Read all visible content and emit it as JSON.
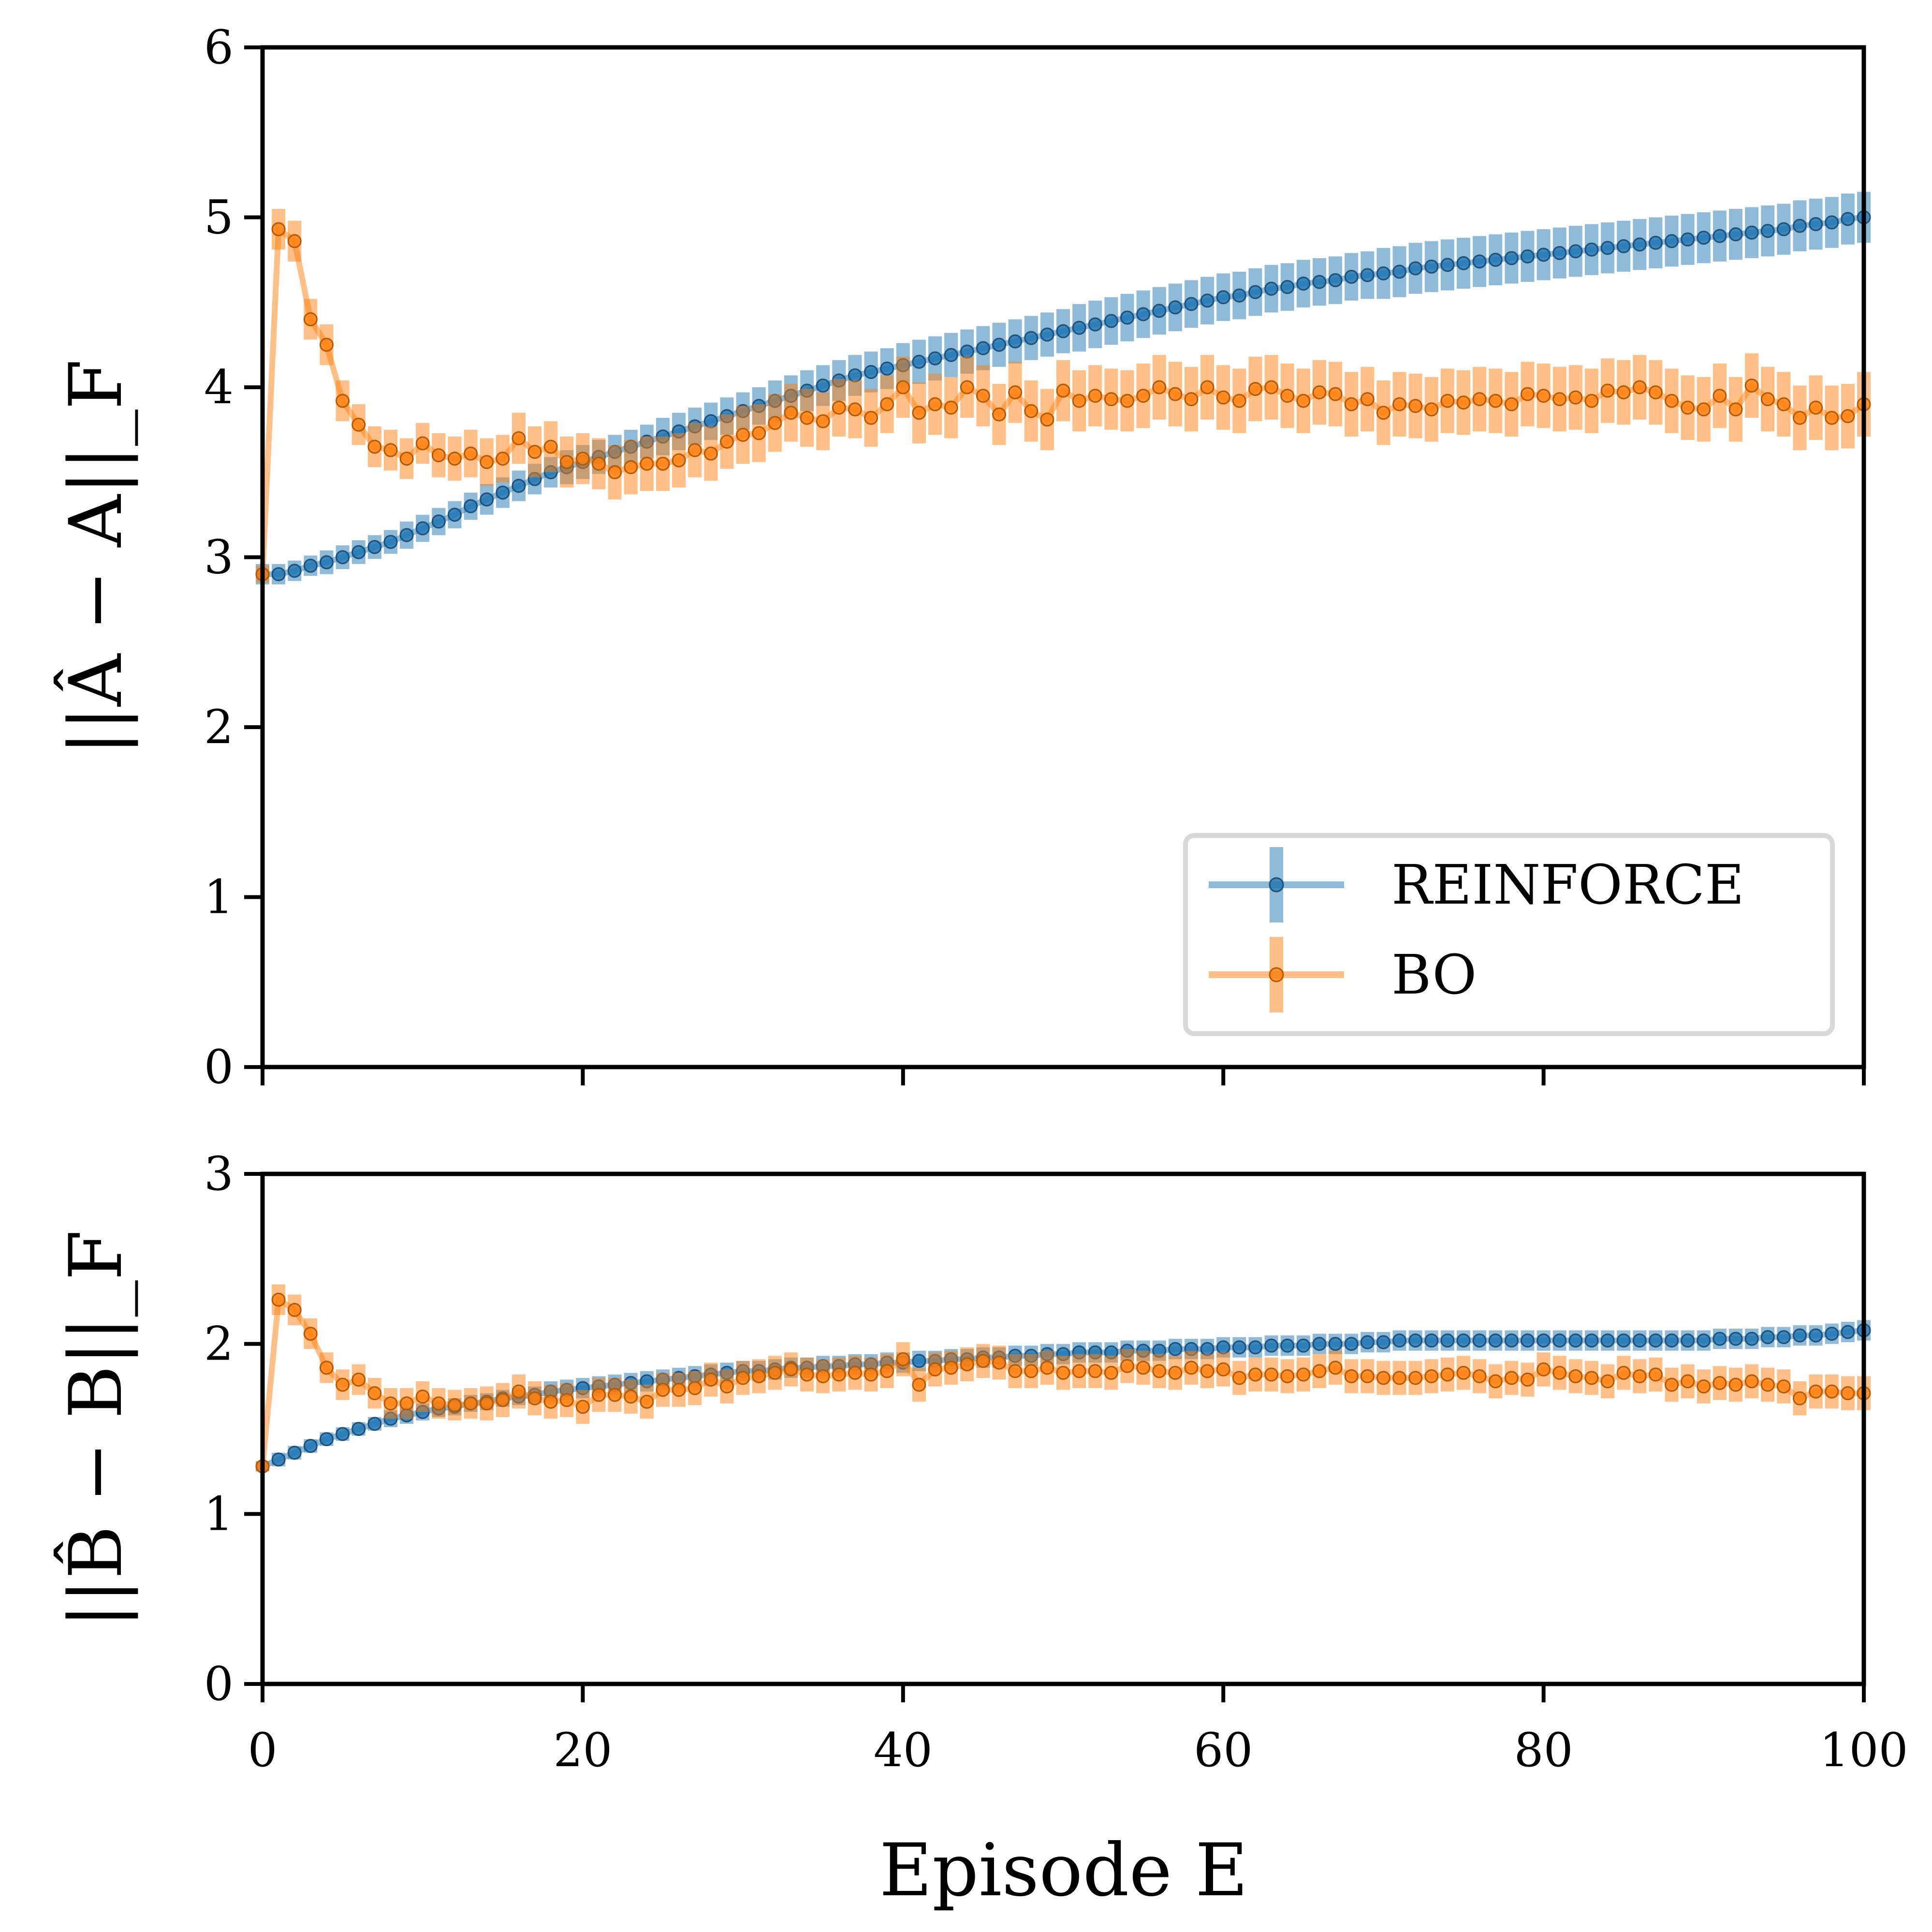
{
  "chart_data": {
    "type": "line",
    "xlabel": "Episode E",
    "xlim": [
      0,
      100
    ],
    "xticks": [
      "0",
      "20",
      "40",
      "60",
      "80",
      "100"
    ],
    "legend": {
      "placement": "lower-right",
      "entries": [
        "REINFORCE",
        "BO"
      ]
    },
    "colors": {
      "REINFORCE": "#1f77b4",
      "BO": "#ff7f0e"
    },
    "panels": [
      {
        "id": "top",
        "ylabel": "||Â − A||_F",
        "ylim": [
          0,
          6
        ],
        "yticks": [
          "0",
          "1",
          "2",
          "3",
          "4",
          "5",
          "6"
        ],
        "series": [
          {
            "name": "REINFORCE",
            "values": [
              2.9,
              2.9,
              2.92,
              2.95,
              2.97,
              3.0,
              3.03,
              3.06,
              3.09,
              3.13,
              3.17,
              3.21,
              3.25,
              3.3,
              3.34,
              3.38,
              3.42,
              3.46,
              3.5,
              3.53,
              3.56,
              3.59,
              3.62,
              3.65,
              3.68,
              3.71,
              3.74,
              3.77,
              3.8,
              3.83,
              3.86,
              3.89,
              3.92,
              3.95,
              3.98,
              4.01,
              4.04,
              4.07,
              4.09,
              4.11,
              4.13,
              4.15,
              4.17,
              4.19,
              4.21,
              4.23,
              4.25,
              4.27,
              4.29,
              4.31,
              4.33,
              4.35,
              4.37,
              4.39,
              4.41,
              4.43,
              4.45,
              4.47,
              4.49,
              4.51,
              4.53,
              4.54,
              4.56,
              4.58,
              4.59,
              4.61,
              4.62,
              4.63,
              4.65,
              4.66,
              4.67,
              4.68,
              4.7,
              4.71,
              4.72,
              4.73,
              4.74,
              4.75,
              4.76,
              4.77,
              4.78,
              4.79,
              4.8,
              4.81,
              4.82,
              4.83,
              4.84,
              4.85,
              4.86,
              4.87,
              4.88,
              4.89,
              4.9,
              4.91,
              4.92,
              4.93,
              4.95,
              4.96,
              4.97,
              4.99,
              5.0
            ],
            "err": [
              0.06,
              0.06,
              0.06,
              0.06,
              0.07,
              0.07,
              0.07,
              0.07,
              0.07,
              0.08,
              0.08,
              0.08,
              0.08,
              0.08,
              0.09,
              0.09,
              0.09,
              0.09,
              0.09,
              0.1,
              0.1,
              0.1,
              0.1,
              0.1,
              0.1,
              0.11,
              0.11,
              0.11,
              0.11,
              0.11,
              0.11,
              0.11,
              0.12,
              0.12,
              0.12,
              0.12,
              0.12,
              0.12,
              0.12,
              0.12,
              0.13,
              0.13,
              0.13,
              0.13,
              0.13,
              0.13,
              0.13,
              0.13,
              0.13,
              0.13,
              0.13,
              0.14,
              0.14,
              0.14,
              0.14,
              0.14,
              0.14,
              0.14,
              0.14,
              0.14,
              0.14,
              0.14,
              0.14,
              0.14,
              0.14,
              0.14,
              0.14,
              0.14,
              0.14,
              0.14,
              0.15,
              0.15,
              0.15,
              0.15,
              0.15,
              0.15,
              0.15,
              0.15,
              0.15,
              0.15,
              0.15,
              0.15,
              0.15,
              0.15,
              0.15,
              0.15,
              0.15,
              0.15,
              0.15,
              0.15,
              0.15,
              0.15,
              0.15,
              0.15,
              0.15,
              0.15,
              0.15,
              0.15,
              0.15,
              0.15,
              0.15
            ]
          },
          {
            "name": "BO",
            "values": [
              2.9,
              4.93,
              4.86,
              4.4,
              4.25,
              3.92,
              3.78,
              3.65,
              3.63,
              3.58,
              3.67,
              3.6,
              3.58,
              3.61,
              3.56,
              3.58,
              3.7,
              3.62,
              3.65,
              3.56,
              3.58,
              3.55,
              3.5,
              3.53,
              3.55,
              3.55,
              3.57,
              3.63,
              3.61,
              3.68,
              3.72,
              3.73,
              3.79,
              3.85,
              3.82,
              3.8,
              3.88,
              3.87,
              3.82,
              3.9,
              4.0,
              3.85,
              3.9,
              3.88,
              4.0,
              3.95,
              3.84,
              3.97,
              3.86,
              3.81,
              3.98,
              3.92,
              3.95,
              3.93,
              3.92,
              3.95,
              4.0,
              3.96,
              3.93,
              4.0,
              3.94,
              3.92,
              3.99,
              4.0,
              3.95,
              3.92,
              3.97,
              3.96,
              3.9,
              3.93,
              3.85,
              3.9,
              3.89,
              3.87,
              3.92,
              3.91,
              3.93,
              3.92,
              3.9,
              3.96,
              3.95,
              3.93,
              3.94,
              3.92,
              3.98,
              3.97,
              4.0,
              3.97,
              3.92,
              3.88,
              3.87,
              3.95,
              3.87,
              4.01,
              3.93,
              3.9,
              3.82,
              3.88,
              3.82,
              3.83,
              3.9
            ],
            "err": [
              0.05,
              0.12,
              0.12,
              0.12,
              0.12,
              0.12,
              0.12,
              0.12,
              0.12,
              0.12,
              0.12,
              0.13,
              0.13,
              0.14,
              0.14,
              0.14,
              0.15,
              0.15,
              0.15,
              0.15,
              0.15,
              0.15,
              0.16,
              0.16,
              0.16,
              0.16,
              0.16,
              0.16,
              0.16,
              0.16,
              0.17,
              0.17,
              0.17,
              0.17,
              0.17,
              0.17,
              0.17,
              0.17,
              0.17,
              0.17,
              0.18,
              0.18,
              0.18,
              0.18,
              0.18,
              0.18,
              0.18,
              0.18,
              0.18,
              0.18,
              0.18,
              0.18,
              0.18,
              0.18,
              0.18,
              0.19,
              0.19,
              0.19,
              0.19,
              0.19,
              0.19,
              0.19,
              0.19,
              0.19,
              0.19,
              0.19,
              0.19,
              0.19,
              0.19,
              0.19,
              0.19,
              0.19,
              0.19,
              0.19,
              0.19,
              0.19,
              0.19,
              0.19,
              0.19,
              0.19,
              0.19,
              0.19,
              0.19,
              0.19,
              0.19,
              0.19,
              0.19,
              0.19,
              0.19,
              0.19,
              0.19,
              0.19,
              0.19,
              0.19,
              0.19,
              0.19,
              0.19,
              0.19,
              0.19,
              0.19,
              0.19
            ]
          }
        ]
      },
      {
        "id": "bottom",
        "ylabel": "||B̂ − B||_F",
        "ylim": [
          0,
          3
        ],
        "yticks": [
          "0",
          "1",
          "2",
          "3"
        ],
        "series": [
          {
            "name": "REINFORCE",
            "values": [
              1.28,
              1.32,
              1.36,
              1.4,
              1.44,
              1.47,
              1.5,
              1.53,
              1.56,
              1.58,
              1.6,
              1.62,
              1.63,
              1.65,
              1.66,
              1.68,
              1.69,
              1.7,
              1.72,
              1.73,
              1.74,
              1.75,
              1.76,
              1.77,
              1.78,
              1.79,
              1.8,
              1.81,
              1.82,
              1.83,
              1.84,
              1.84,
              1.85,
              1.86,
              1.86,
              1.87,
              1.87,
              1.88,
              1.88,
              1.89,
              1.89,
              1.9,
              1.9,
              1.91,
              1.91,
              1.92,
              1.92,
              1.93,
              1.93,
              1.94,
              1.94,
              1.95,
              1.95,
              1.95,
              1.96,
              1.96,
              1.96,
              1.97,
              1.97,
              1.97,
              1.98,
              1.98,
              1.98,
              1.99,
              1.99,
              1.99,
              2.0,
              2.0,
              2.0,
              2.01,
              2.01,
              2.02,
              2.02,
              2.02,
              2.02,
              2.02,
              2.02,
              2.02,
              2.02,
              2.02,
              2.02,
              2.02,
              2.02,
              2.02,
              2.02,
              2.02,
              2.02,
              2.02,
              2.02,
              2.02,
              2.02,
              2.03,
              2.03,
              2.03,
              2.04,
              2.04,
              2.05,
              2.05,
              2.06,
              2.07,
              2.08
            ],
            "err": [
              0.03,
              0.04,
              0.04,
              0.04,
              0.04,
              0.04,
              0.04,
              0.04,
              0.05,
              0.05,
              0.05,
              0.05,
              0.05,
              0.05,
              0.05,
              0.05,
              0.05,
              0.05,
              0.06,
              0.06,
              0.06,
              0.06,
              0.06,
              0.06,
              0.06,
              0.06,
              0.06,
              0.06,
              0.06,
              0.06,
              0.06,
              0.06,
              0.06,
              0.06,
              0.06,
              0.06,
              0.06,
              0.06,
              0.06,
              0.06,
              0.06,
              0.06,
              0.06,
              0.06,
              0.06,
              0.06,
              0.06,
              0.06,
              0.06,
              0.06,
              0.06,
              0.06,
              0.06,
              0.06,
              0.06,
              0.06,
              0.06,
              0.06,
              0.06,
              0.06,
              0.06,
              0.06,
              0.06,
              0.06,
              0.06,
              0.06,
              0.06,
              0.06,
              0.06,
              0.06,
              0.06,
              0.06,
              0.06,
              0.06,
              0.06,
              0.06,
              0.06,
              0.06,
              0.06,
              0.06,
              0.06,
              0.06,
              0.06,
              0.06,
              0.06,
              0.06,
              0.06,
              0.06,
              0.06,
              0.06,
              0.06,
              0.06,
              0.06,
              0.06,
              0.06,
              0.06,
              0.06,
              0.06,
              0.06,
              0.06,
              0.06
            ]
          },
          {
            "name": "BO",
            "values": [
              1.28,
              2.26,
              2.2,
              2.06,
              1.86,
              1.76,
              1.79,
              1.71,
              1.65,
              1.65,
              1.69,
              1.65,
              1.64,
              1.65,
              1.65,
              1.67,
              1.72,
              1.68,
              1.66,
              1.67,
              1.63,
              1.7,
              1.7,
              1.69,
              1.66,
              1.73,
              1.73,
              1.74,
              1.79,
              1.75,
              1.8,
              1.81,
              1.83,
              1.85,
              1.82,
              1.81,
              1.82,
              1.83,
              1.82,
              1.84,
              1.91,
              1.76,
              1.85,
              1.86,
              1.88,
              1.9,
              1.89,
              1.84,
              1.84,
              1.86,
              1.83,
              1.84,
              1.84,
              1.83,
              1.87,
              1.86,
              1.84,
              1.83,
              1.86,
              1.84,
              1.85,
              1.8,
              1.82,
              1.82,
              1.81,
              1.82,
              1.84,
              1.86,
              1.81,
              1.81,
              1.8,
              1.8,
              1.8,
              1.81,
              1.82,
              1.83,
              1.81,
              1.78,
              1.8,
              1.79,
              1.85,
              1.83,
              1.81,
              1.8,
              1.78,
              1.83,
              1.81,
              1.82,
              1.76,
              1.78,
              1.75,
              1.77,
              1.76,
              1.78,
              1.76,
              1.75,
              1.68,
              1.72,
              1.72,
              1.71,
              1.71
            ],
            "err": [
              0.03,
              0.09,
              0.09,
              0.09,
              0.09,
              0.09,
              0.09,
              0.09,
              0.09,
              0.09,
              0.09,
              0.09,
              0.09,
              0.09,
              0.1,
              0.1,
              0.1,
              0.1,
              0.1,
              0.1,
              0.1,
              0.1,
              0.1,
              0.1,
              0.1,
              0.1,
              0.1,
              0.1,
              0.1,
              0.1,
              0.1,
              0.1,
              0.1,
              0.1,
              0.1,
              0.1,
              0.1,
              0.1,
              0.1,
              0.1,
              0.1,
              0.1,
              0.1,
              0.1,
              0.1,
              0.1,
              0.1,
              0.1,
              0.1,
              0.1,
              0.1,
              0.1,
              0.1,
              0.1,
              0.1,
              0.1,
              0.1,
              0.1,
              0.1,
              0.1,
              0.1,
              0.1,
              0.1,
              0.1,
              0.1,
              0.1,
              0.1,
              0.1,
              0.1,
              0.1,
              0.1,
              0.1,
              0.1,
              0.1,
              0.1,
              0.1,
              0.1,
              0.1,
              0.1,
              0.1,
              0.1,
              0.1,
              0.1,
              0.1,
              0.1,
              0.1,
              0.1,
              0.1,
              0.1,
              0.1,
              0.1,
              0.1,
              0.1,
              0.1,
              0.1,
              0.1,
              0.1,
              0.1,
              0.1,
              0.1,
              0.1
            ]
          }
        ]
      }
    ]
  }
}
